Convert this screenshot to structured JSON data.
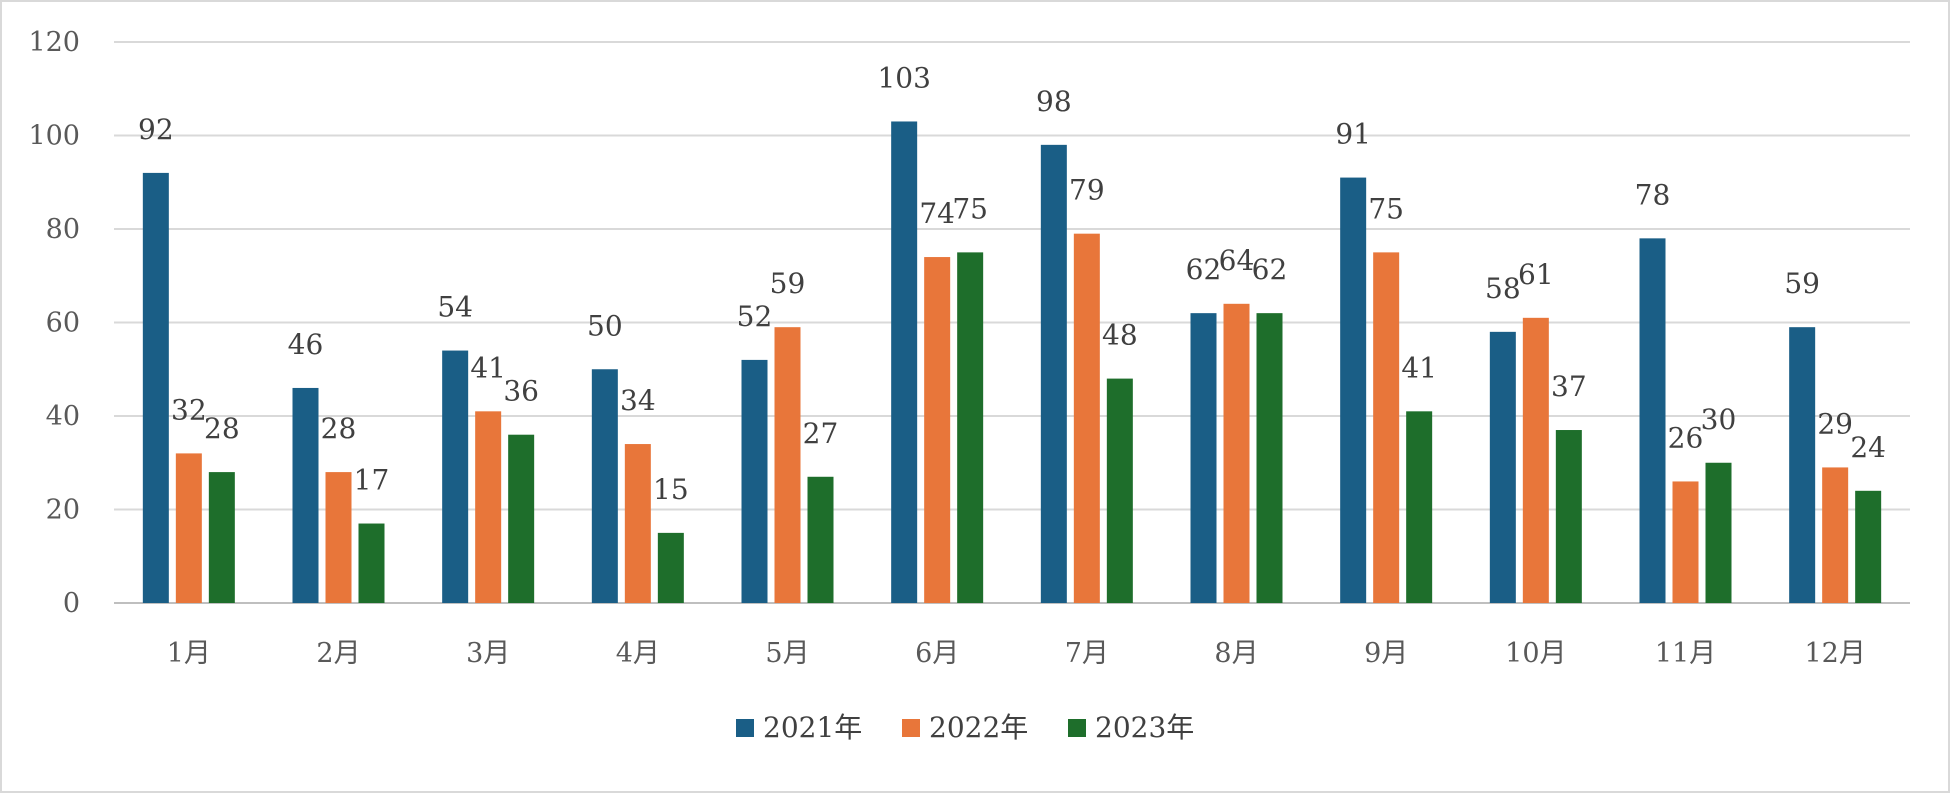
{
  "chart_data": {
    "type": "bar",
    "title": "",
    "xlabel": "",
    "ylabel": "",
    "categories": [
      "1月",
      "2月",
      "3月",
      "4月",
      "5月",
      "6月",
      "7月",
      "8月",
      "9月",
      "10月",
      "11月",
      "12月"
    ],
    "series": [
      {
        "name": "2021年",
        "color": "#1a5e86",
        "values": [
          92,
          46,
          54,
          50,
          52,
          103,
          98,
          62,
          91,
          58,
          78,
          59
        ]
      },
      {
        "name": "2022年",
        "color": "#e8763a",
        "values": [
          32,
          28,
          41,
          34,
          59,
          74,
          79,
          64,
          75,
          61,
          26,
          29
        ]
      },
      {
        "name": "2023年",
        "color": "#1e6e2b",
        "values": [
          28,
          17,
          36,
          15,
          27,
          75,
          48,
          62,
          41,
          37,
          30,
          24
        ]
      }
    ],
    "ylim": [
      0,
      120
    ],
    "yticks": [
      0,
      20,
      40,
      60,
      80,
      100,
      120
    ],
    "grid": true,
    "legend": "bottom-center",
    "data_labels": true
  }
}
